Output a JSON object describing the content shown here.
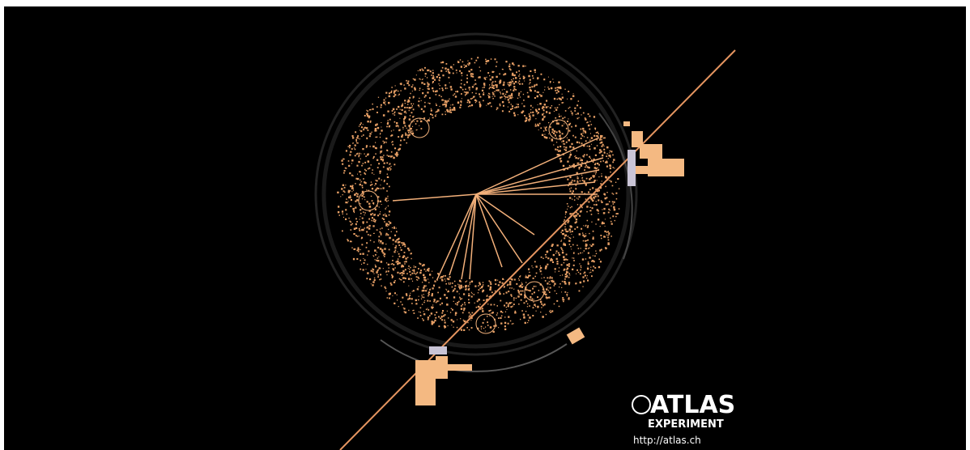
{
  "logo": {
    "title": "ATLAS",
    "subtitle": "EXPERIMENT",
    "url": "http://atlas.ch"
  }
}
